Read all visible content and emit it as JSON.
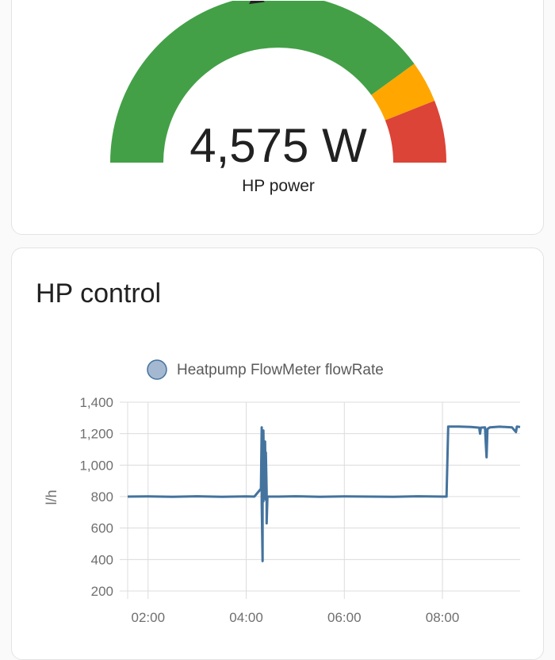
{
  "gauge": {
    "value_text": "4,575 W",
    "name": "HP power",
    "value": 4575,
    "min": 0,
    "max": 10000,
    "severity": [
      {
        "from": 0,
        "to": 8000,
        "color": "#43a047"
      },
      {
        "from": 8000,
        "to": 8800,
        "color": "#ffa600"
      },
      {
        "from": 8800,
        "to": 10000,
        "color": "#db4437"
      }
    ]
  },
  "chart_card": {
    "title": "HP control"
  },
  "colors": {
    "series": "#44739e",
    "legend_marker": "#a4b9d1",
    "needle": "#212121"
  },
  "chart_data": {
    "type": "line",
    "legend": "Heatpump FlowMeter flowRate",
    "ylabel": "l/h",
    "xlabel": "",
    "ylim": [
      200,
      1400
    ],
    "yticks": [
      "200",
      "400",
      "600",
      "800",
      "1,000",
      "1,200",
      "1,400"
    ],
    "yvalues": [
      200,
      400,
      600,
      800,
      1000,
      1200,
      1400
    ],
    "xlim": [
      "01:35",
      "09:35"
    ],
    "xticks": [
      "02:00",
      "04:00",
      "06:00",
      "08:00"
    ],
    "grid": true,
    "series": [
      {
        "name": "Heatpump FlowMeter flowRate",
        "points": [
          [
            "01:35",
            800
          ],
          [
            "02:00",
            801
          ],
          [
            "02:30",
            799
          ],
          [
            "03:00",
            802
          ],
          [
            "03:30",
            799
          ],
          [
            "04:00",
            801
          ],
          [
            "04:10",
            800
          ],
          [
            "04:18",
            850
          ],
          [
            "04:19",
            1240
          ],
          [
            "04:19",
            760
          ],
          [
            "04:20",
            390
          ],
          [
            "04:20",
            1060
          ],
          [
            "04:21",
            770
          ],
          [
            "04:21",
            1220
          ],
          [
            "04:22",
            790
          ],
          [
            "04:22",
            1100
          ],
          [
            "04:23",
            800
          ],
          [
            "04:23",
            1150
          ],
          [
            "04:24",
            780
          ],
          [
            "04:24",
            1080
          ],
          [
            "04:25",
            830
          ],
          [
            "04:25",
            630
          ],
          [
            "04:26",
            800
          ],
          [
            "04:40",
            800
          ],
          [
            "05:00",
            802
          ],
          [
            "05:30",
            799
          ],
          [
            "06:00",
            801
          ],
          [
            "06:30",
            800
          ],
          [
            "07:00",
            799
          ],
          [
            "07:30",
            802
          ],
          [
            "08:00",
            800
          ],
          [
            "08:05",
            800
          ],
          [
            "08:07",
            1245
          ],
          [
            "08:20",
            1245
          ],
          [
            "08:35",
            1242
          ],
          [
            "08:45",
            1238
          ],
          [
            "08:46",
            1200
          ],
          [
            "08:47",
            1238
          ],
          [
            "08:52",
            1240
          ],
          [
            "08:53",
            1140
          ],
          [
            "08:54",
            1050
          ],
          [
            "08:55",
            1230
          ],
          [
            "08:58",
            1240
          ],
          [
            "09:10",
            1244
          ],
          [
            "09:25",
            1240
          ],
          [
            "09:30",
            1210
          ],
          [
            "09:31",
            1245
          ],
          [
            "09:35",
            1242
          ]
        ]
      }
    ]
  }
}
